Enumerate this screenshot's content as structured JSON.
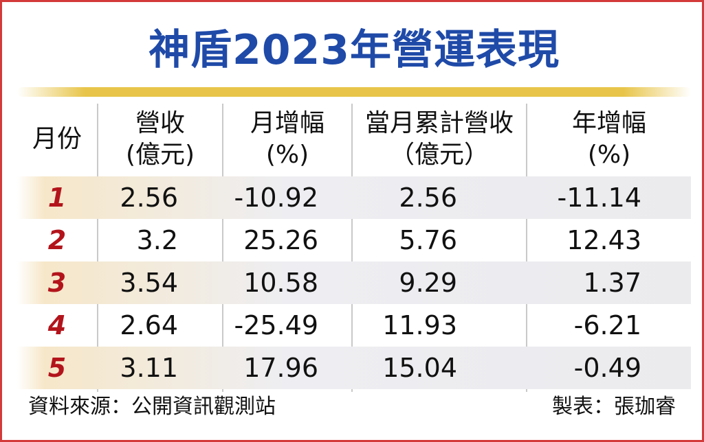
{
  "title": "神盾2023年營運表現",
  "table": {
    "headers": [
      {
        "line1": "月份",
        "line2": ""
      },
      {
        "line1": "營收",
        "line2": "(億元)"
      },
      {
        "line1": "月增幅",
        "line2": "(%)"
      },
      {
        "line1": "當月累計營收",
        "line2": "（億元）"
      },
      {
        "line1": "年增幅",
        "line2": "(%)"
      }
    ],
    "rows": [
      {
        "month": "1",
        "revenue": "2.56",
        "mom": "-10.92",
        "cumulative": "2.56",
        "yoy": "-11.14"
      },
      {
        "month": "2",
        "revenue": "3.2",
        "mom": "25.26",
        "cumulative": "5.76",
        "yoy": "12.43"
      },
      {
        "month": "3",
        "revenue": "3.54",
        "mom": "10.58",
        "cumulative": "9.29",
        "yoy": "1.37"
      },
      {
        "month": "4",
        "revenue": "2.64",
        "mom": "-25.49",
        "cumulative": "11.93",
        "yoy": "-6.21"
      },
      {
        "month": "5",
        "revenue": "3.11",
        "mom": "17.96",
        "cumulative": "15.04",
        "yoy": "-0.49"
      }
    ]
  },
  "footer": {
    "source": "資料來源：公開資訊觀測站",
    "author": "製表：張珈睿"
  },
  "colors": {
    "title": "#1f4aa8",
    "border": "#d33a3a",
    "month_number": "#b3141c",
    "gold_bar": "#e8c54a"
  }
}
